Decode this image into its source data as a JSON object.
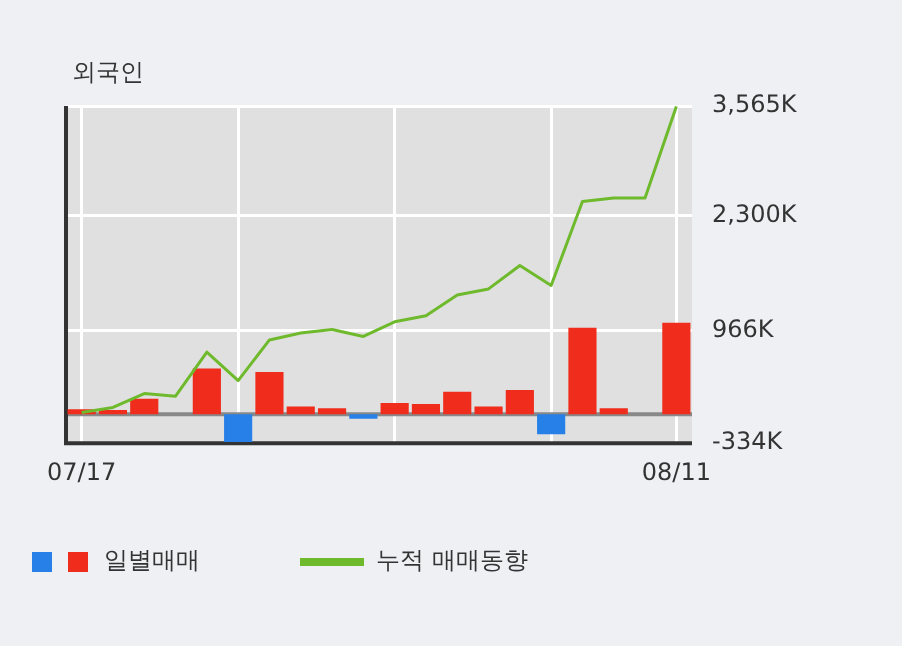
{
  "chart_data": {
    "type": "bar",
    "title": "외국인",
    "categories": [
      "07/17",
      null,
      null,
      null,
      null,
      null,
      null,
      null,
      null,
      null,
      null,
      null,
      null,
      null,
      null,
      null,
      null,
      null,
      null,
      "08/11"
    ],
    "series": [
      {
        "name": "일별매매",
        "values": [
          60,
          50,
          180,
          0,
          530,
          -320,
          490,
          90,
          70,
          -50,
          130,
          120,
          260,
          90,
          280,
          -230,
          1000,
          70,
          0,
          1060
        ],
        "colors": [
          "#f02c1c",
          "#f02c1c",
          "#f02c1c",
          "#f02c1c",
          "#f02c1c",
          "#2680e8",
          "#f02c1c",
          "#f02c1c",
          "#f02c1c",
          "#2680e8",
          "#f02c1c",
          "#f02c1c",
          "#f02c1c",
          "#f02c1c",
          "#f02c1c",
          "#2680e8",
          "#f02c1c",
          "#f02c1c",
          "#f02c1c",
          "#f02c1c"
        ]
      },
      {
        "name": "누적 매매동향",
        "type": "line",
        "color": "#6fba2c",
        "values": [
          20,
          80,
          240,
          210,
          720,
          390,
          860,
          940,
          980,
          900,
          1070,
          1140,
          1380,
          1450,
          1720,
          1490,
          2460,
          2500,
          2500,
          3560
        ]
      }
    ],
    "ylim": [
      -334,
      3565
    ],
    "yticks": [
      {
        "value": -334,
        "label": "-334K"
      },
      {
        "value": 966,
        "label": "966K"
      },
      {
        "value": 2300,
        "label": "2,300K"
      },
      {
        "value": 3565,
        "label": "3,565K"
      }
    ],
    "grid": true,
    "legend": "bottom",
    "marker": "none"
  }
}
